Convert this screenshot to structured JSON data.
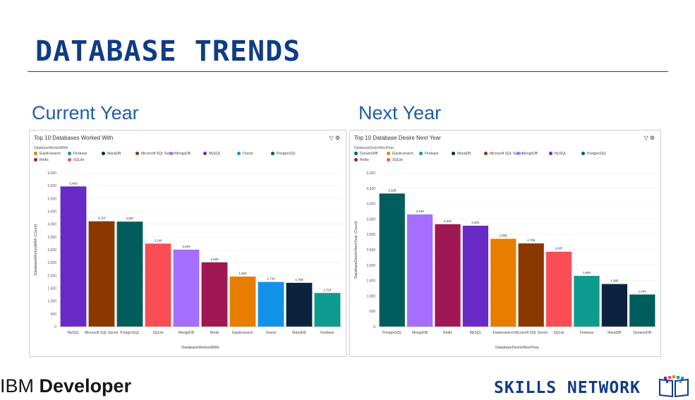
{
  "slide": {
    "title": "DATABASE TRENDS",
    "left_heading": "Current Year",
    "right_heading": "Next Year",
    "footer_left_light": "IBM ",
    "footer_left_bold": "Developer",
    "footer_right": "SKILLS NETWORK"
  },
  "legend_colors": {
    "DynamoDB": "#005d5d",
    "Elasticsearch": "#e87e00",
    "Firebase": "#0c9b8e",
    "MariaDB": "#0c2340",
    "Microsoft SQL Server": "#8a3800",
    "MongoDB": "#a56eff",
    "MySQL": "#6929c4",
    "Oracle": "#1192e8",
    "PostgreSQL": "#005d5d",
    "Redis": "#9f1853",
    "SQLite": "#fa4d56"
  },
  "chart_data": [
    {
      "type": "bar",
      "title": "Top 10 Databases Worked With",
      "legend_title": "DatabaseWorkedWith",
      "legend": [
        "Elasticsearch",
        "Firebase",
        "MariaDB",
        "Microsoft SQL Server",
        "MongoDB",
        "MySQL",
        "Oracle",
        "PostgreSQL",
        "Redis",
        "SQLite"
      ],
      "xlabel": "DatabaseWorkedWith",
      "ylabel": "DatabaseWorkedWith (Count)",
      "ylim": [
        0,
        6000
      ],
      "yticks": [
        0,
        500,
        1000,
        1500,
        2000,
        2500,
        3000,
        3500,
        4000,
        4500,
        5000,
        5500,
        6000
      ],
      "ytick_labels": [
        "0",
        "500",
        "1,000",
        "1,500",
        "2,000",
        "2,500",
        "3,000",
        "3,500",
        "4,000",
        "4,500",
        "5,000",
        "5,500",
        "6,000"
      ],
      "categories": [
        "MySQL",
        "Microsoft SQL Server",
        "PostgreSQL",
        "SQLite",
        "MongoDB",
        "Redis",
        "Elasticsearch",
        "Oracle",
        "MariaDB",
        "Firebase"
      ],
      "values": [
        5469,
        4110,
        4097,
        3240,
        3004,
        2509,
        1954,
        1744,
        1709,
        1314
      ],
      "value_labels": [
        "5,469",
        "4,110",
        "4,097",
        "3,240",
        "3,004",
        "2,509",
        "1,954",
        "1,744",
        "1,709",
        "1,314"
      ],
      "colors": [
        "#6929c4",
        "#8a3800",
        "#005d5d",
        "#fa4d56",
        "#a56eff",
        "#9f1853",
        "#e87e00",
        "#1192e8",
        "#0c2340",
        "#0c9b8e"
      ]
    },
    {
      "type": "bar",
      "title": "Top 10 Database Desire Next Year",
      "legend_title": "DatabaseDesireNextYear",
      "legend": [
        "DynamoDB",
        "Elasticsearch",
        "Firebase",
        "MariaDB",
        "Microsoft SQL Server",
        "MongoDB",
        "MySQL",
        "PostgreSQL",
        "Redis",
        "SQLite"
      ],
      "xlabel": "DatabaseDesireNextYear",
      "ylabel": "DatabaseDesireNextYear (Count)",
      "ylim": [
        0,
        5000
      ],
      "yticks": [
        0,
        500,
        1000,
        1500,
        2000,
        2500,
        3000,
        3500,
        4000,
        4500,
        5000
      ],
      "ytick_labels": [
        "0",
        "500",
        "1,000",
        "1,500",
        "2,000",
        "2,500",
        "3,000",
        "3,500",
        "4,000",
        "4,500",
        "5,000"
      ],
      "categories": [
        "PostgreSQL",
        "MongoDB",
        "Redis",
        "MySQL",
        "Elasticsearch",
        "Microsoft SQL Server",
        "SQLite",
        "Firebase",
        "MariaDB",
        "DynamoDB"
      ],
      "values": [
        4328,
        3649,
        3331,
        3281,
        2856,
        2706,
        2437,
        1650,
        1385,
        1044
      ],
      "value_labels": [
        "4,328",
        "3,649",
        "3,331",
        "3,281",
        "2,856",
        "2,706",
        "2,437",
        "1,650",
        "1,385",
        "1,044"
      ],
      "colors": [
        "#005d5d",
        "#a56eff",
        "#9f1853",
        "#6929c4",
        "#e87e00",
        "#8a3800",
        "#fa4d56",
        "#0c9b8e",
        "#0c2340",
        "#005d5d"
      ]
    }
  ]
}
